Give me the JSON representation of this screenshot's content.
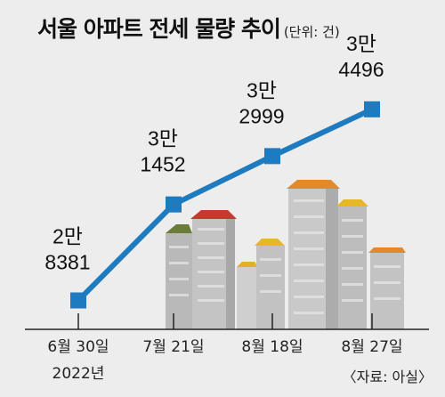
{
  "title": "서울 아파트 전세 물량 추이",
  "unit_note": "(단위: 건)",
  "source": "〈자료: 아실〉",
  "colors": {
    "line": "#1f7bbf",
    "marker": "#1f7bbf",
    "axis": "#222222",
    "background": "#ededed"
  },
  "chart_data": {
    "type": "line",
    "title": "서울 아파트 전세 물량 추이",
    "unit": "건",
    "categories": [
      "6월 30일",
      "7월 21일",
      "8월 18일",
      "8월 27일"
    ],
    "category_sublabels": [
      "2022년",
      "",
      "",
      ""
    ],
    "values": [
      28381,
      31452,
      32999,
      34496
    ],
    "data_labels": [
      [
        "2만",
        "8381"
      ],
      [
        "3만",
        "1452"
      ],
      [
        "3만",
        "2999"
      ],
      [
        "3만",
        "4496"
      ]
    ],
    "grid": false,
    "legend": "none"
  }
}
